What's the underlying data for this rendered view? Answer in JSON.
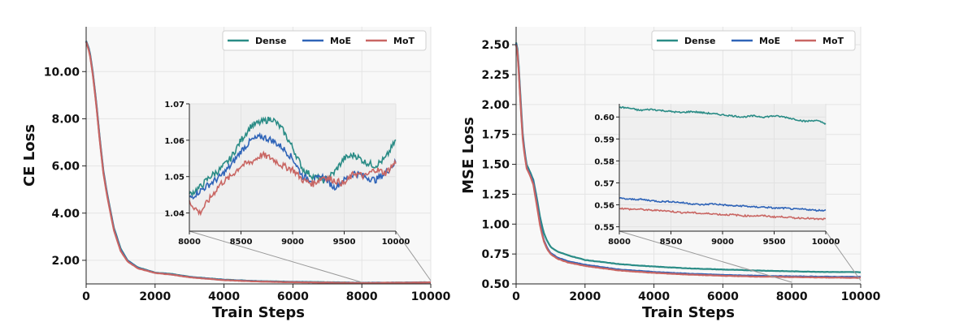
{
  "colors": {
    "dense": "#2a8c86",
    "moe": "#2f64b8",
    "mot": "#c96663"
  },
  "chart_data": [
    {
      "type": "line",
      "xlabel": "Train Steps",
      "ylabel": "CE Loss",
      "xlim": [
        0,
        10000
      ],
      "ylim": [
        1.0,
        11.9
      ],
      "xticks": [
        "0",
        "2000",
        "4000",
        "6000",
        "8000",
        "10000"
      ],
      "yticks": [
        "2.00",
        "4.00",
        "6.00",
        "8.00",
        "10.00"
      ],
      "grid": true,
      "legend": {
        "placement": "top-right",
        "labels": [
          "Dense",
          "MoE",
          "MoT"
        ]
      },
      "x": [
        0,
        100,
        200,
        300,
        400,
        500,
        600,
        800,
        1000,
        1200,
        1500,
        2000,
        2500,
        3000,
        4000,
        5000,
        6000,
        7000,
        8000,
        9000,
        10000
      ],
      "series": [
        {
          "name": "Dense",
          "values": [
            11.3,
            10.9,
            9.9,
            8.6,
            7.1,
            5.8,
            4.9,
            3.4,
            2.5,
            2.0,
            1.7,
            1.48,
            1.42,
            1.3,
            1.18,
            1.12,
            1.09,
            1.07,
            1.05,
            1.055,
            1.07
          ]
        },
        {
          "name": "MoE",
          "values": [
            11.28,
            10.85,
            9.85,
            8.55,
            7.05,
            5.75,
            4.85,
            3.35,
            2.45,
            1.98,
            1.68,
            1.47,
            1.4,
            1.29,
            1.17,
            1.11,
            1.08,
            1.06,
            1.046,
            1.052,
            1.065
          ]
        },
        {
          "name": "MoT",
          "values": [
            11.26,
            10.8,
            9.8,
            8.5,
            7.0,
            5.7,
            4.8,
            3.3,
            2.4,
            1.95,
            1.66,
            1.46,
            1.39,
            1.28,
            1.16,
            1.1,
            1.07,
            1.055,
            1.04,
            1.05,
            1.063
          ]
        }
      ],
      "inset": {
        "xlim": [
          8000,
          10000
        ],
        "ylim": [
          1.035,
          1.07
        ],
        "xticks": [
          "8000",
          "8500",
          "9000",
          "9500",
          "10000"
        ],
        "yticks": [
          "1.04",
          "1.05",
          "1.06",
          "1.07"
        ],
        "x": [
          8000,
          8100,
          8200,
          8300,
          8400,
          8500,
          8600,
          8700,
          8800,
          8900,
          9000,
          9100,
          9200,
          9300,
          9400,
          9500,
          9600,
          9700,
          9800,
          9900,
          10000
        ],
        "series": [
          {
            "name": "Dense",
            "values": [
              1.045,
              1.047,
              1.05,
              1.052,
              1.055,
              1.06,
              1.064,
              1.065,
              1.066,
              1.063,
              1.058,
              1.052,
              1.05,
              1.049,
              1.051,
              1.055,
              1.056,
              1.054,
              1.053,
              1.055,
              1.06
            ]
          },
          {
            "name": "MoE",
            "values": [
              1.044,
              1.046,
              1.048,
              1.05,
              1.053,
              1.057,
              1.06,
              1.061,
              1.06,
              1.058,
              1.055,
              1.05,
              1.049,
              1.05,
              1.047,
              1.049,
              1.051,
              1.05,
              1.049,
              1.051,
              1.054
            ]
          },
          {
            "name": "MoT",
            "values": [
              1.043,
              1.04,
              1.044,
              1.048,
              1.05,
              1.053,
              1.054,
              1.056,
              1.055,
              1.053,
              1.052,
              1.049,
              1.048,
              1.05,
              1.049,
              1.048,
              1.051,
              1.05,
              1.052,
              1.051,
              1.054
            ]
          }
        ]
      }
    },
    {
      "type": "line",
      "xlabel": "Train Steps",
      "ylabel": "MSE Loss",
      "xlim": [
        0,
        10000
      ],
      "ylim": [
        0.5,
        2.65
      ],
      "xticks": [
        "0",
        "2000",
        "4000",
        "6000",
        "8000",
        "10000"
      ],
      "yticks": [
        "0.50",
        "0.75",
        "1.00",
        "1.25",
        "1.50",
        "1.75",
        "2.00",
        "2.25",
        "2.50"
      ],
      "grid": true,
      "legend": {
        "placement": "top-right",
        "labels": [
          "Dense",
          "MoE",
          "MoT"
        ]
      },
      "x": [
        0,
        50,
        100,
        150,
        200,
        300,
        400,
        500,
        600,
        700,
        800,
        900,
        1000,
        1200,
        1500,
        2000,
        3000,
        4000,
        5000,
        6000,
        7000,
        8000,
        9000,
        10000
      ],
      "series": [
        {
          "name": "Dense",
          "values": [
            2.52,
            2.45,
            2.2,
            1.95,
            1.72,
            1.5,
            1.44,
            1.37,
            1.22,
            1.05,
            0.93,
            0.86,
            0.81,
            0.77,
            0.74,
            0.7,
            0.665,
            0.645,
            0.63,
            0.62,
            0.612,
            0.605,
            0.6,
            0.598
          ]
        },
        {
          "name": "MoE",
          "values": [
            2.51,
            2.43,
            2.17,
            1.92,
            1.7,
            1.48,
            1.42,
            1.35,
            1.18,
            1.0,
            0.87,
            0.8,
            0.76,
            0.72,
            0.69,
            0.66,
            0.62,
            0.6,
            0.585,
            0.575,
            0.568,
            0.563,
            0.56,
            0.558
          ]
        },
        {
          "name": "MoT",
          "values": [
            2.5,
            2.42,
            2.15,
            1.9,
            1.68,
            1.47,
            1.41,
            1.33,
            1.16,
            0.98,
            0.86,
            0.79,
            0.75,
            0.71,
            0.68,
            0.65,
            0.612,
            0.592,
            0.578,
            0.568,
            0.561,
            0.557,
            0.553,
            0.551
          ]
        }
      ],
      "inset": {
        "xlim": [
          8000,
          10000
        ],
        "ylim": [
          0.548,
          0.606
        ],
        "xticks": [
          "8000",
          "8500",
          "9000",
          "9500",
          "10000"
        ],
        "yticks": [
          "0.55",
          "0.56",
          "0.57",
          "0.58",
          "0.59",
          "0.60"
        ],
        "x": [
          8000,
          8100,
          8200,
          8300,
          8400,
          8500,
          8600,
          8700,
          8800,
          8900,
          9000,
          9100,
          9200,
          9300,
          9400,
          9500,
          9600,
          9700,
          9800,
          9900,
          10000
        ],
        "series": [
          {
            "name": "Dense",
            "values": [
              0.6045,
              0.604,
              0.603,
              0.6035,
              0.603,
              0.6025,
              0.602,
              0.6025,
              0.602,
              0.6015,
              0.601,
              0.6005,
              0.6,
              0.6005,
              0.6,
              0.6005,
              0.6,
              0.599,
              0.598,
              0.5985,
              0.597
            ]
          },
          {
            "name": "MoE",
            "values": [
              0.563,
              0.5625,
              0.5625,
              0.562,
              0.5615,
              0.5615,
              0.561,
              0.5605,
              0.56,
              0.5605,
              0.56,
              0.5595,
              0.5595,
              0.559,
              0.559,
              0.5585,
              0.5585,
              0.558,
              0.558,
              0.5575,
              0.5575
            ]
          },
          {
            "name": "MoT",
            "values": [
              0.5585,
              0.558,
              0.558,
              0.5575,
              0.5575,
              0.557,
              0.5565,
              0.5565,
              0.556,
              0.556,
              0.5555,
              0.5555,
              0.555,
              0.555,
              0.555,
              0.5545,
              0.5545,
              0.554,
              0.554,
              0.5535,
              0.5535
            ]
          }
        ]
      }
    }
  ]
}
